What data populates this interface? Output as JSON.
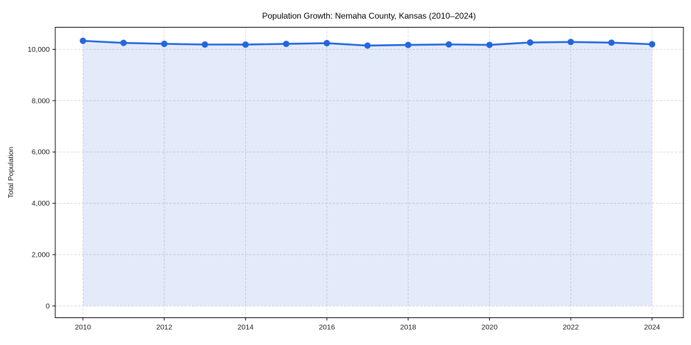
{
  "chart_data": {
    "type": "line",
    "title": "Population Growth: Nemaha County, Kansas (2010–2024)",
    "xlabel": "",
    "ylabel": "Total Population",
    "x": [
      2010,
      2011,
      2012,
      2013,
      2014,
      2015,
      2016,
      2017,
      2018,
      2019,
      2020,
      2021,
      2022,
      2023,
      2024
    ],
    "series": [
      {
        "name": "Total Population",
        "values": [
          10332,
          10251,
          10215,
          10188,
          10186,
          10213,
          10241,
          10146,
          10172,
          10191,
          10173,
          10268,
          10287,
          10260,
          10198
        ]
      }
    ],
    "xticks": [
      2010,
      2012,
      2014,
      2016,
      2018,
      2020,
      2022,
      2024
    ],
    "yticks": [
      0,
      2000,
      4000,
      6000,
      8000,
      10000
    ],
    "ytick_labels": [
      "0",
      "2,000",
      "4,000",
      "6,000",
      "8,000",
      "10,000"
    ],
    "xlim": [
      2009.32,
      2024.77
    ],
    "ylim": [
      -460,
      10860
    ],
    "grid": "dashed",
    "legend": "none",
    "markers": true,
    "area_fill": true,
    "colors": {
      "line": "#2465e0",
      "marker": "#2465e0",
      "fill": "#2465e0",
      "fill_opacity": 0.13,
      "grid": "#d8d8d8",
      "spine": "#000000",
      "text": "#1a1a1a",
      "background": "#ffffff"
    }
  }
}
